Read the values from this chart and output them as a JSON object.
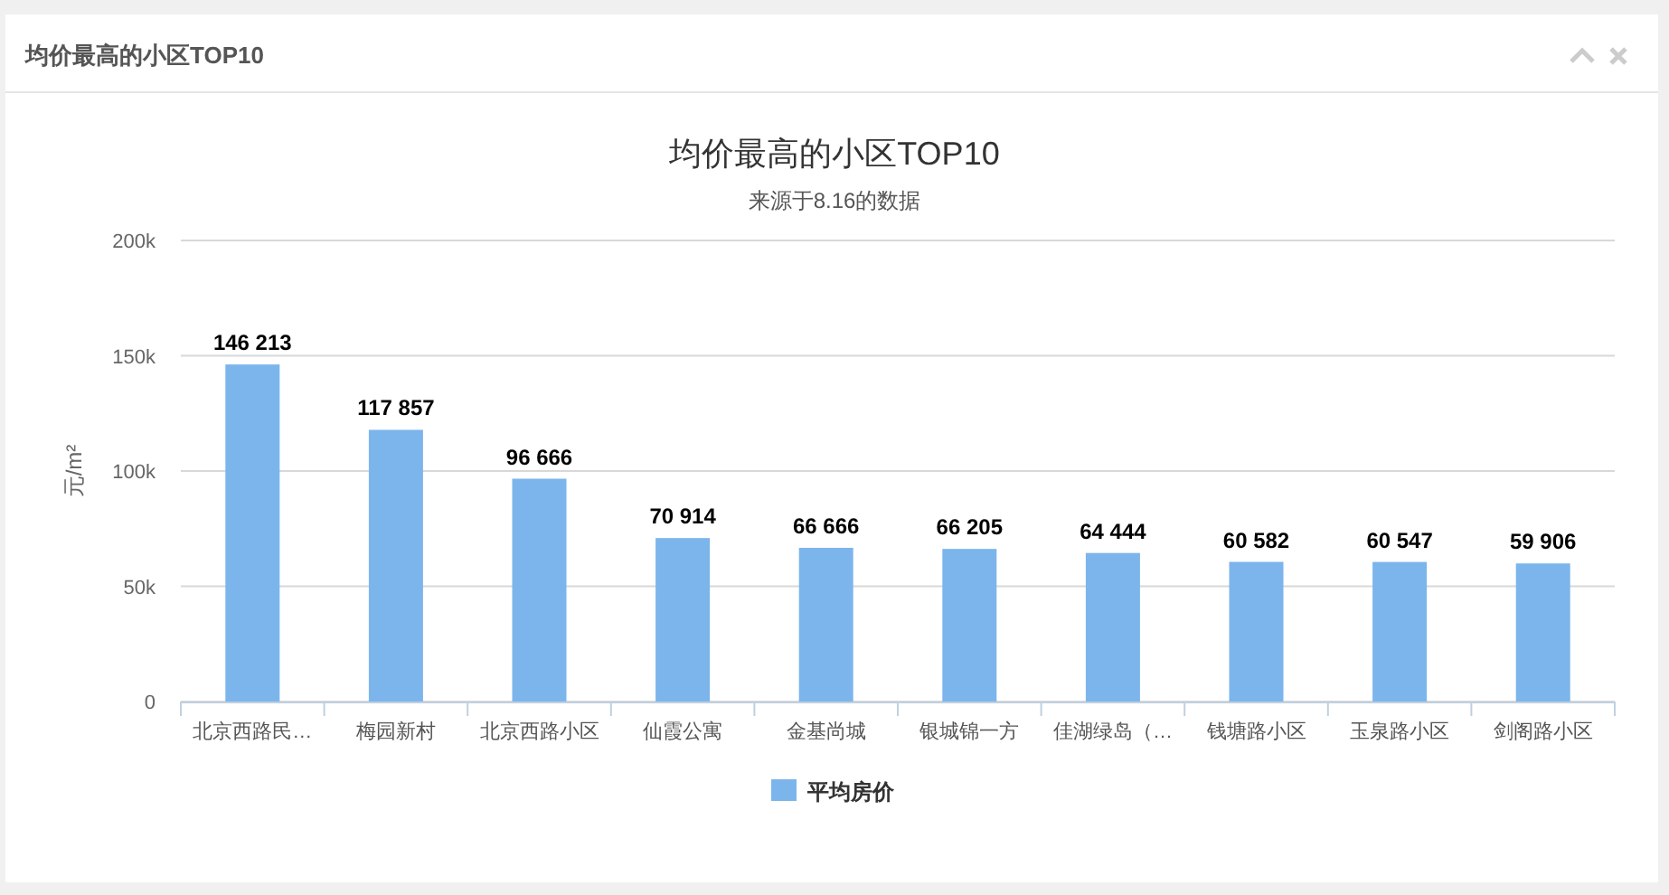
{
  "chart_data": {
    "type": "bar",
    "title": "均价最高的小区TOP10",
    "subtitle": "来源于8.16的数据",
    "ylabel": "元/m²",
    "annotations": [
      "均价最高的小区TOP10"
    ],
    "categories": [
      "北京西路民…",
      "梅园新村",
      "北京西路小区",
      "仙霞公寓",
      "金基尚城",
      "银城锦一方",
      "佳湖绿岛（…",
      "钱塘路小区",
      "玉泉路小区",
      "剑阁路小区"
    ],
    "series": [
      {
        "name": "平均房价",
        "color": "#7cb5ec",
        "values": [
          146213,
          117857,
          96666,
          70914,
          66666,
          66205,
          64444,
          60582,
          60547,
          59906
        ],
        "value_labels": [
          "146 213",
          "117 857",
          "96 666",
          "70 914",
          "66 666",
          "66 205",
          "64 444",
          "60 582",
          "60 547",
          "59 906"
        ]
      }
    ],
    "ylim": [
      0,
      200000
    ],
    "yticks": [
      0,
      {
        "value": 50000,
        "label": "50k"
      },
      {
        "value": 100000,
        "label": "100k"
      },
      {
        "value": 150000,
        "label": "150k"
      },
      {
        "value": 200000,
        "label": "200k"
      }
    ],
    "grid": "y",
    "legend": "bottom"
  }
}
